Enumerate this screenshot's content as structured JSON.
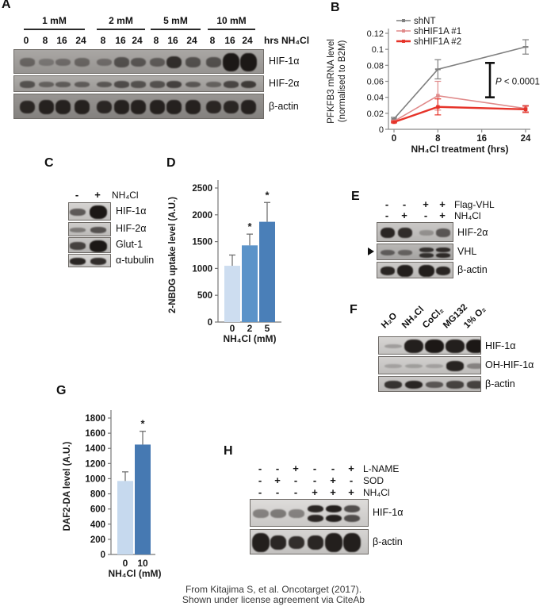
{
  "figure": {
    "caption_line1": "From Kitajima S, et al. Oncotarget (2017).",
    "caption_line2": "Shown under license agreement via CiteAb"
  },
  "panels": {
    "A": {
      "label": "A",
      "lane_unit_label": "hrs NH₄Cl",
      "groups": [
        {
          "label": "1 mM",
          "lanes": [
            "0",
            "8",
            "16",
            "24"
          ]
        },
        {
          "label": "2 mM",
          "lanes": [
            "8",
            "16",
            "24"
          ]
        },
        {
          "label": "5 mM",
          "lanes": [
            "8",
            "16",
            "24"
          ]
        },
        {
          "label": "10 mM",
          "lanes": [
            "8",
            "16",
            "24"
          ]
        }
      ],
      "strips": [
        {
          "target": "HIF-1α",
          "bands": [
            0.3,
            0.15,
            0.25,
            0.3,
            0.25,
            0.5,
            0.45,
            0.4,
            0.8,
            0.5,
            0.5,
            1,
            1
          ]
        },
        {
          "target": "HIF-2α",
          "bands": [
            0.5,
            0.35,
            0.4,
            0.4,
            0.45,
            0.55,
            0.5,
            0.5,
            0.65,
            0.45,
            0.35,
            0.6,
            0.7
          ]
        },
        {
          "target": "β-actin",
          "bands": [
            0.85,
            0.9,
            0.9,
            0.9,
            0.85,
            0.9,
            0.9,
            0.9,
            0.9,
            0.9,
            0.85,
            0.85,
            0.9
          ]
        }
      ]
    },
    "B": {
      "label": "B"
    },
    "C": {
      "label": "C",
      "rows": [
        {
          "label": "NH₄Cl",
          "signs": [
            "-",
            "+"
          ]
        }
      ],
      "strips": [
        {
          "target": "HIF-1α",
          "bands": [
            0.55,
            1
          ]
        },
        {
          "target": "HIF-2α",
          "bands": [
            0.3,
            0.6
          ]
        },
        {
          "target": "Glut-1",
          "bands": [
            0.7,
            1
          ]
        },
        {
          "target": "α-tubulin",
          "bands": [
            0.9,
            0.85
          ]
        }
      ]
    },
    "D": {
      "label": "D"
    },
    "E": {
      "label": "E",
      "rows": [
        {
          "label": "Flag-VHL",
          "signs": [
            "-",
            "-",
            "+",
            "+"
          ]
        },
        {
          "label": "NH₄Cl",
          "signs": [
            "-",
            "+",
            "-",
            "+"
          ]
        }
      ],
      "strips": [
        {
          "target": "HIF-2α",
          "bands": [
            0.9,
            0.85,
            0.12,
            0.55
          ]
        },
        {
          "target": "VHL",
          "bands": [
            0.45,
            0.4,
            0.8,
            0.85
          ],
          "doublet": [
            false,
            false,
            true,
            true
          ]
        },
        {
          "target": "β-actin",
          "bands": [
            0.9,
            0.95,
            0.95,
            0.9
          ]
        }
      ],
      "arrow_marker": true
    },
    "F": {
      "label": "F",
      "lane_labels": [
        "H₂O",
        "NH₄Cl",
        "CoCl₂",
        "MG132",
        "1% O₂"
      ],
      "strips": [
        {
          "target": "HIF-1α",
          "bands": [
            0.08,
            0.95,
            1,
            0.95,
            1
          ]
        },
        {
          "target": "OH-HIF-1α",
          "bands": [
            0.04,
            0.06,
            0.05,
            0.92,
            0.25
          ]
        },
        {
          "target": "β-actin",
          "bands": [
            0.8,
            0.9,
            0.55,
            0.7,
            0.7
          ]
        }
      ]
    },
    "G": {
      "label": "G"
    },
    "H": {
      "label": "H",
      "rows": [
        {
          "label": "L-NAME",
          "signs": [
            "-",
            "-",
            "+",
            "-",
            "-",
            "+"
          ]
        },
        {
          "label": "SOD",
          "signs": [
            "-",
            "+",
            "-",
            "-",
            "+",
            "-"
          ]
        },
        {
          "label": "NH₄Cl",
          "signs": [
            "-",
            "-",
            "-",
            "+",
            "+",
            "+"
          ]
        }
      ],
      "strips": [
        {
          "target": "HIF-1α",
          "bands": [
            0.3,
            0.35,
            0.3,
            0.9,
            0.95,
            0.65
          ],
          "doublet": [
            false,
            false,
            false,
            true,
            true,
            true
          ]
        },
        {
          "target": "β-actin",
          "bands": [
            0.95,
            0.9,
            0.85,
            0.9,
            0.95,
            0.95
          ]
        }
      ]
    }
  },
  "chart_data": [
    {
      "id": "B",
      "type": "line",
      "xlabel": "NH₄Cl treatment (hrs)",
      "ylabel_lines": [
        "PFKFB3 mRNA level",
        "(normalised to B2M)"
      ],
      "x": [
        0,
        8,
        24
      ],
      "xticks": [
        0,
        8,
        16,
        24
      ],
      "ylim": [
        0,
        0.12
      ],
      "yticks": [
        0,
        0.02,
        0.04,
        0.06,
        0.08,
        0.1,
        0.12
      ],
      "legend_position": "top-left",
      "series": [
        {
          "name": "shNT",
          "color": "#7f7f7f",
          "values": [
            0.013,
            0.075,
            0.103
          ],
          "errors": [
            0.002,
            0.012,
            0.009
          ]
        },
        {
          "name": "shHIF1A #1",
          "color": "#e08a8a",
          "values": [
            0.01,
            0.042,
            0.026
          ],
          "errors": [
            0.001,
            0.018,
            0.004
          ]
        },
        {
          "name": "shHIF1A #2",
          "color": "#e63329",
          "values": [
            0.009,
            0.028,
            0.025
          ],
          "errors": [
            0.001,
            0.01,
            0.004
          ]
        }
      ],
      "annotation": {
        "text_italic": "P",
        "text": " < 0.0001",
        "bracket_y": [
          0.04,
          0.083
        ],
        "bracket_x": 17.5
      }
    },
    {
      "id": "D",
      "type": "bar",
      "categories": [
        "0",
        "2",
        "5"
      ],
      "values": [
        1050,
        1430,
        1870
      ],
      "errors": [
        200,
        210,
        360
      ],
      "sig": [
        "",
        "*",
        "*"
      ],
      "colors": [
        "#cdddf0",
        "#5b93c9",
        "#4a7fb8"
      ],
      "xlabel": "NH₄Cl (mM)",
      "ylabel": "2-NBDG uptake level (A.U.)",
      "ylim": [
        0,
        2500
      ],
      "ytick_step": 500
    },
    {
      "id": "G",
      "type": "bar",
      "categories": [
        "0",
        "10"
      ],
      "values": [
        970,
        1450
      ],
      "errors": [
        120,
        175
      ],
      "sig": [
        "",
        "*"
      ],
      "colors": [
        "#c6d9ee",
        "#4679b2"
      ],
      "xlabel": "NH₄Cl (mM)",
      "ylabel": "DAF2-DA level (A.U.)",
      "ylim": [
        0,
        1800
      ],
      "ytick_step": 200
    }
  ]
}
